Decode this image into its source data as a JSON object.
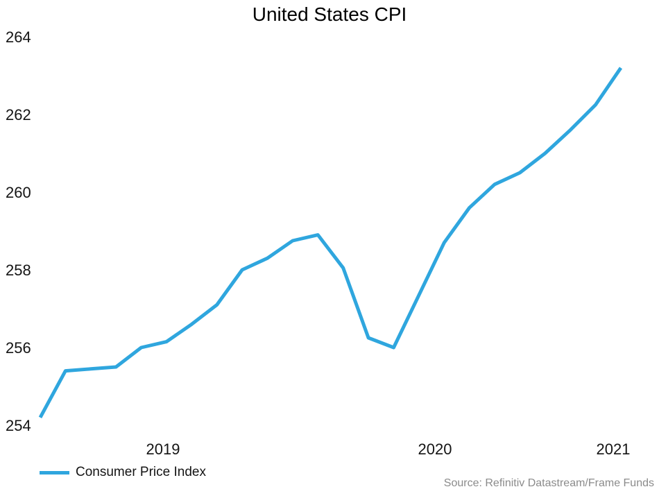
{
  "title": "United States CPI",
  "legend": {
    "label": "Consumer Price Index"
  },
  "source": "Source: Refinitiv Datastream/Frame Funds",
  "chart_data": {
    "type": "line",
    "title": "United States CPI",
    "x": [
      "2019-03",
      "2019-04",
      "2019-05",
      "2019-06",
      "2019-07",
      "2019-08",
      "2019-09",
      "2019-10",
      "2019-11",
      "2019-12",
      "2020-01",
      "2020-02",
      "2020-03",
      "2020-04",
      "2020-05",
      "2020-06",
      "2020-07",
      "2020-08",
      "2020-09",
      "2020-10",
      "2020-11",
      "2020-12",
      "2021-01",
      "2021-02"
    ],
    "series": [
      {
        "name": "Consumer Price Index",
        "color": "#2FA6DE",
        "values": [
          254.2,
          255.4,
          255.45,
          255.5,
          256.0,
          256.15,
          256.6,
          257.1,
          258.0,
          258.3,
          258.75,
          258.9,
          258.05,
          256.25,
          256.0,
          257.35,
          258.7,
          259.6,
          260.2,
          260.5,
          261.0,
          261.6,
          262.25,
          263.2
        ]
      }
    ],
    "xlabel": "",
    "ylabel": "",
    "ylim": [
      254,
      264
    ],
    "yticks": [
      254,
      256,
      258,
      260,
      262,
      264
    ],
    "xticks": [
      "2019",
      "2020",
      "2021"
    ],
    "grid": false,
    "axis_lines": false,
    "legend_position": "bottom-left"
  }
}
